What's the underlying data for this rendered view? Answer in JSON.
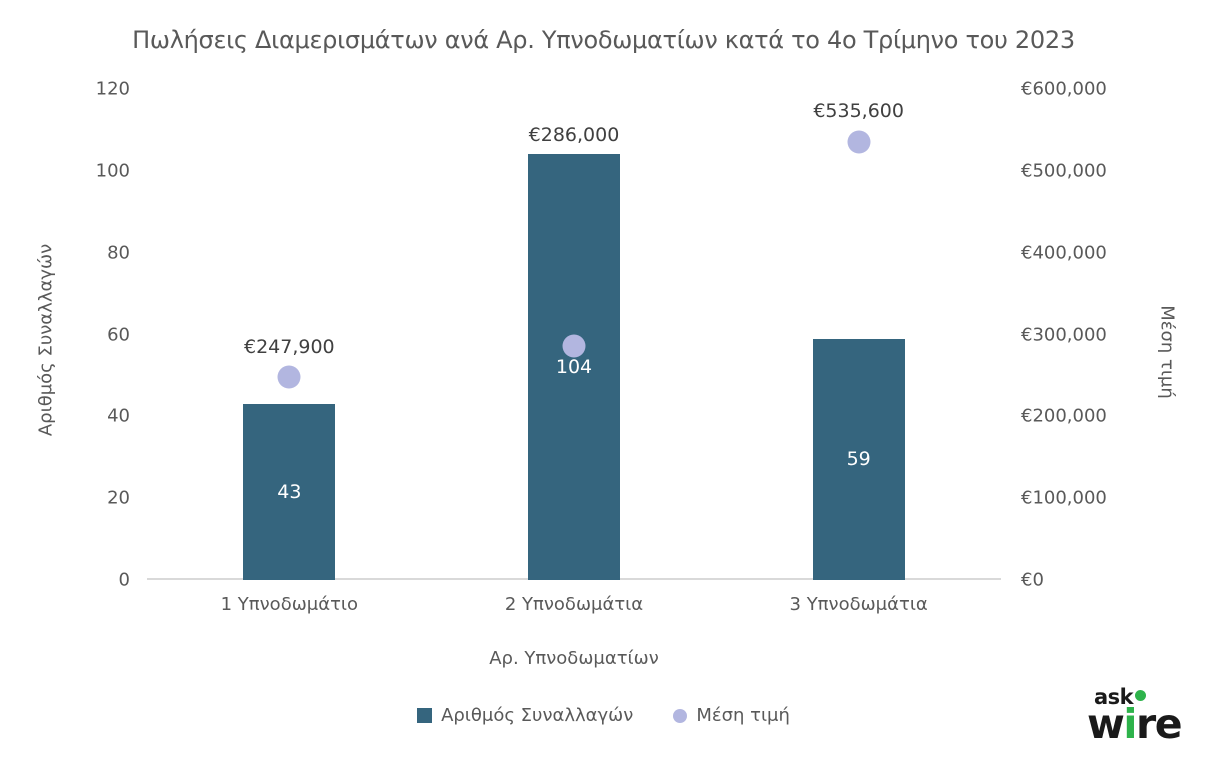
{
  "chart_data": {
    "type": "bar",
    "subtype": "combo-bar-scatter",
    "title": "Πωλήσεις Διαμερισμάτων ανά Αρ. Υπνοδωματίων κατά το 4ο Τρίμηνο του 2023",
    "categories": [
      "1 Υπνοδωμάτιο",
      "2 Υπνοδωμάτια",
      "3 Υπνοδωμάτια"
    ],
    "series": [
      {
        "name": "Αριθμός Συναλλαγών",
        "type": "bar",
        "axis": "left",
        "values": [
          43,
          104,
          59
        ],
        "value_labels": [
          "43",
          "104",
          "59"
        ]
      },
      {
        "name": "Μέση τιμή",
        "type": "scatter",
        "axis": "right",
        "values": [
          247900,
          286000,
          535600
        ],
        "value_labels": [
          "€247,900",
          "€286,000",
          "€535,600"
        ]
      }
    ],
    "xlabel": "Αρ. Υπνοδωματίων",
    "ylabel_left": "Αριθμός Συναλλαγών",
    "ylabel_right": "Μέση τιμή",
    "left_axis": {
      "min": 0,
      "max": 120,
      "step": 20,
      "ticks": [
        "0",
        "20",
        "40",
        "60",
        "80",
        "100",
        "120"
      ]
    },
    "right_axis": {
      "min": 0,
      "max": 600000,
      "step": 100000,
      "ticks": [
        "€0",
        "€100,000",
        "€200,000",
        "€300,000",
        "€400,000",
        "€500,000",
        "€600,000"
      ]
    },
    "grid": false,
    "legend_position": "bottom"
  },
  "legend": {
    "items": [
      {
        "label": "Αριθμός Συναλλαγών",
        "marker": "square"
      },
      {
        "label": "Μέση τιμή",
        "marker": "circle"
      }
    ]
  },
  "logo": {
    "top_text": "ask",
    "bottom_prefix": "w",
    "bottom_accent": "i",
    "bottom_suffix": "re"
  },
  "colors": {
    "bar": "#35657E",
    "dot": "#B2B6E0",
    "axis_line": "#D9D9D9",
    "text": "#595959",
    "data_label": "#404040",
    "bar_label": "#FFFFFF",
    "logo_green": "#2EB34B",
    "logo_black": "#1A1A1A",
    "background": "#FFFFFF"
  }
}
